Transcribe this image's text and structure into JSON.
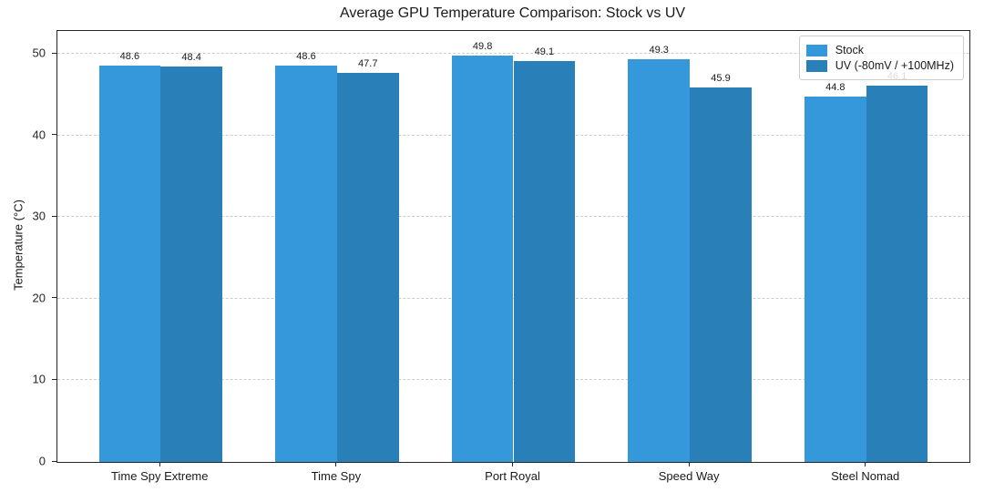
{
  "chart_data": {
    "type": "bar",
    "title": "Average GPU Temperature Comparison: Stock vs UV",
    "xlabel": "",
    "ylabel": "Temperature (°C)",
    "categories": [
      "Time Spy Extreme",
      "Time Spy",
      "Port Royal",
      "Speed Way",
      "Steel Nomad"
    ],
    "series": [
      {
        "name": "Stock",
        "color": "#3498db",
        "values": [
          48.6,
          48.6,
          49.8,
          49.3,
          44.8
        ]
      },
      {
        "name": "UV (-80mV / +100MHz)",
        "color": "#2980b9",
        "values": [
          48.4,
          47.7,
          49.1,
          45.9,
          46.1
        ]
      }
    ],
    "value_labels": true,
    "yticks": [
      0,
      10,
      20,
      30,
      40,
      50
    ],
    "ylim": [
      0,
      52.8
    ],
    "xlim": [
      -0.585,
      4.585
    ],
    "bar_width_units": 0.35,
    "grid": "horizontal-dashed",
    "legend_position": "upper-right",
    "colors": {
      "grid": "#cdcdcd",
      "spine": "#262626",
      "text": "#1a1a1a",
      "background": "#ffffff"
    }
  }
}
